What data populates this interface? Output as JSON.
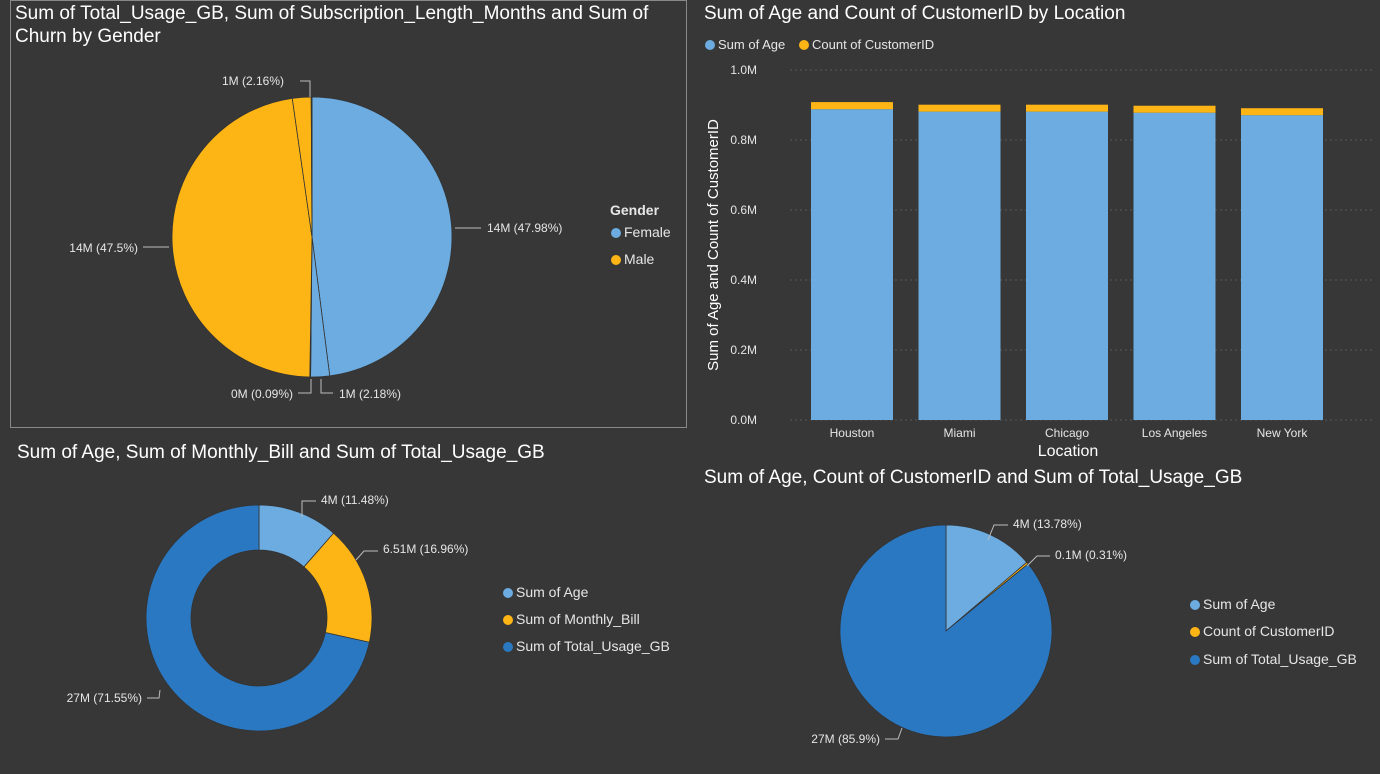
{
  "colors": {
    "light_blue": "#6cace0",
    "yellow": "#fdb515",
    "dark_blue": "#2b78c2",
    "background": "#373737",
    "panel_border": "#888888"
  },
  "chart_data": [
    {
      "id": "gender_pie",
      "type": "pie",
      "title": "Sum of Total_Usage_GB, Sum of Subscription_Length_Months and Sum of Churn by Gender",
      "legend_title": "Gender",
      "legend": [
        {
          "name": "Female",
          "color": "#6cace0"
        },
        {
          "name": "Male",
          "color": "#fdb515"
        }
      ],
      "slices": [
        {
          "label": "14M (47.98%)",
          "percent": 47.98,
          "color": "#6cace0",
          "group": "Female"
        },
        {
          "label": "1M (2.18%)",
          "percent": 2.18,
          "color": "#6cace0",
          "group": "Female"
        },
        {
          "label": "0M (0.09%)",
          "percent": 0.09,
          "color": "#6cace0",
          "group": "Female"
        },
        {
          "label": "14M (47.5%)",
          "percent": 47.5,
          "color": "#fdb515",
          "group": "Male"
        },
        {
          "label": "1M (2.16%)",
          "percent": 2.16,
          "color": "#fdb515",
          "group": "Male"
        },
        {
          "label": "",
          "percent": 0.09,
          "color": "#fdb515",
          "group": "Male"
        }
      ]
    },
    {
      "id": "location_bar",
      "type": "bar",
      "stacked": true,
      "title": "Sum of Age and Count of CustomerID by Location",
      "xlabel": "Location",
      "ylabel": "Sum of Age and Count of CustomerID",
      "categories": [
        "Houston",
        "Miami",
        "Chicago",
        "Los Angeles",
        "New York"
      ],
      "series": [
        {
          "name": "Sum of Age",
          "color": "#6cace0",
          "values": [
            0.888,
            0.881,
            0.881,
            0.878,
            0.871
          ]
        },
        {
          "name": "Count of CustomerID",
          "color": "#fdb515",
          "values": [
            0.0203,
            0.0199,
            0.0199,
            0.0199,
            0.0198
          ]
        }
      ],
      "y_ticks": [
        "0.0M",
        "0.2M",
        "0.4M",
        "0.6M",
        "0.8M",
        "1.0M"
      ],
      "ylim": [
        0,
        1.0
      ],
      "grid": true,
      "legend_position": "top-left"
    },
    {
      "id": "donut",
      "type": "pie",
      "donut": true,
      "title": "Sum of Age, Sum of Monthly_Bill and Sum of Total_Usage_GB",
      "legend": [
        {
          "name": "Sum of Age",
          "color": "#6cace0"
        },
        {
          "name": "Sum of Monthly_Bill",
          "color": "#fdb515"
        },
        {
          "name": "Sum of Total_Usage_GB",
          "color": "#2b78c2"
        }
      ],
      "slices": [
        {
          "label": "4M (11.48%)",
          "percent": 11.48,
          "color": "#6cace0"
        },
        {
          "label": "6.51M (16.96%)",
          "percent": 16.96,
          "color": "#fdb515"
        },
        {
          "label": "27M (71.55%)",
          "percent": 71.55,
          "color": "#2b78c2"
        }
      ]
    },
    {
      "id": "pie2",
      "type": "pie",
      "title": "Sum of Age, Count of CustomerID and Sum of Total_Usage_GB",
      "legend": [
        {
          "name": "Sum of Age",
          "color": "#6cace0"
        },
        {
          "name": "Count of CustomerID",
          "color": "#fdb515"
        },
        {
          "name": "Sum of Total_Usage_GB",
          "color": "#2b78c2"
        }
      ],
      "slices": [
        {
          "label": "4M (13.78%)",
          "percent": 13.78,
          "color": "#6cace0"
        },
        {
          "label": "0.1M (0.31%)",
          "percent": 0.31,
          "color": "#fdb515"
        },
        {
          "label": "27M (85.9%)",
          "percent": 85.9,
          "color": "#2b78c2"
        }
      ]
    }
  ]
}
